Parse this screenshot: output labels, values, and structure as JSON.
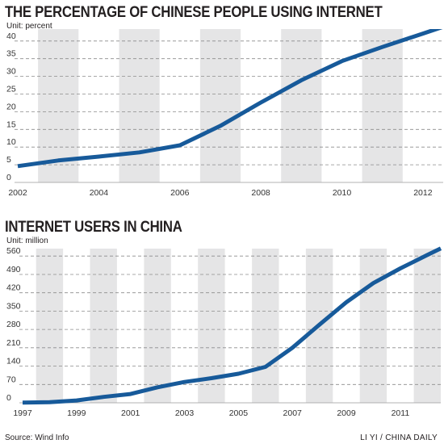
{
  "chart_data": [
    {
      "type": "line",
      "title": "THE PERCENTAGE OF CHINESE PEOPLE USING INTERNET",
      "subtitle": "Unit: percent",
      "x": [
        2002,
        2003,
        2004,
        2005,
        2006,
        2007,
        2008,
        2009,
        2010,
        2011,
        2012
      ],
      "x_end": 2012.5,
      "series": [
        {
          "values": [
            4.6,
            6.2,
            7.3,
            8.5,
            10.5,
            16.0,
            22.6,
            28.9,
            34.3,
            38.3,
            42.1
          ]
        }
      ],
      "x_ticks": [
        "2002",
        "2004",
        "2006",
        "2008",
        "2010",
        "2012"
      ],
      "y_ticks": [
        0,
        5,
        10,
        15,
        20,
        25,
        30,
        35,
        40
      ],
      "ylim": [
        0,
        42
      ],
      "grid": "horizontal-dashed",
      "color": "#175a9a",
      "band_color": "#e5e5e6"
    },
    {
      "type": "line",
      "title": "INTERNET USERS IN CHINA",
      "subtitle": "Unit: million",
      "x": [
        1997,
        1998,
        1999,
        2000,
        2001,
        2002,
        2003,
        2004,
        2005,
        2006,
        2007,
        2008,
        2009,
        2010,
        2011,
        2012
      ],
      "x_end": 2012.5,
      "series": [
        {
          "values": [
            0.6,
            2.1,
            8.9,
            22.5,
            33.7,
            59.1,
            79.5,
            94.0,
            111.0,
            137.0,
            210.0,
            298.0,
            384.0,
            457.0,
            513.0,
            564.0
          ]
        }
      ],
      "x_ticks": [
        "1997",
        "1999",
        "2001",
        "2003",
        "2005",
        "2007",
        "2009",
        "2011"
      ],
      "y_ticks": [
        0,
        70,
        140,
        210,
        280,
        350,
        420,
        490,
        560
      ],
      "ylim": [
        0,
        570
      ],
      "grid": "horizontal-dashed",
      "color": "#175a9a",
      "band_color": "#e5e5e6"
    }
  ],
  "footer": {
    "source": "Source: Wind Info",
    "credit": "LI YI / CHINA DAILY"
  }
}
